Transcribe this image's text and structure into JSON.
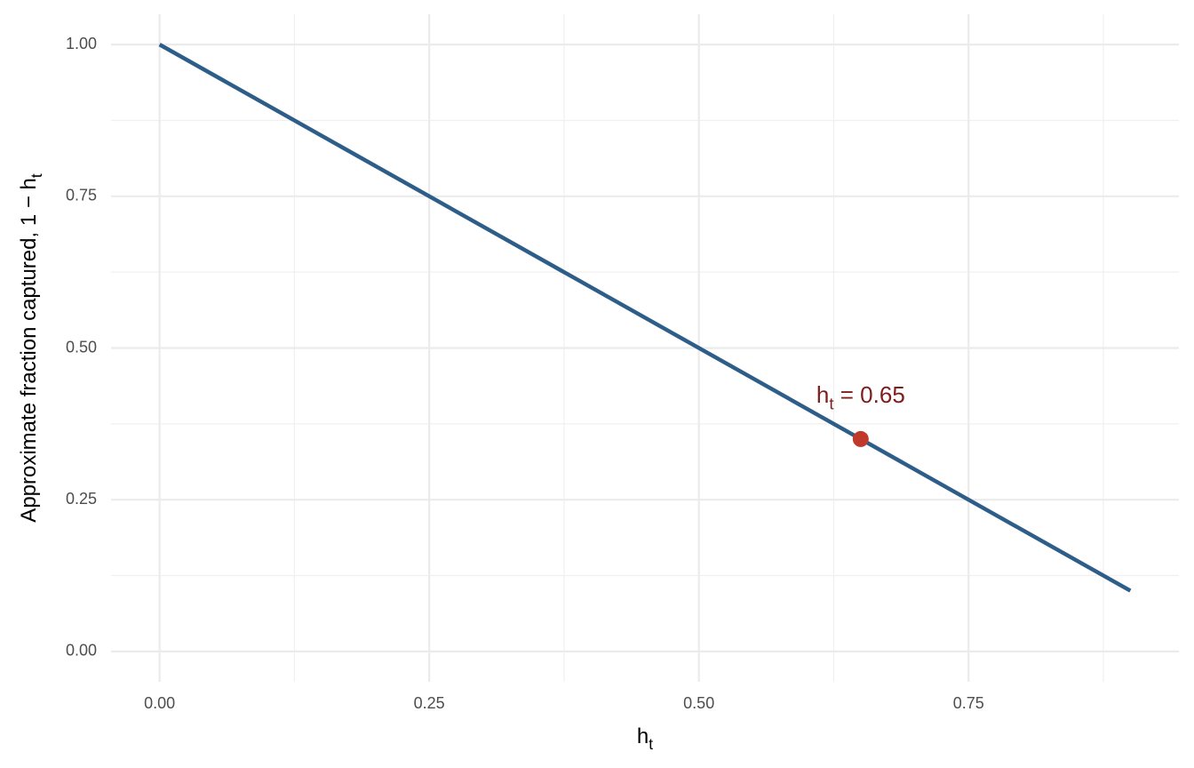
{
  "chart_data": {
    "type": "line",
    "xlabel": {
      "base": "h",
      "sub": "t"
    },
    "ylabel": {
      "base": "Approximate fraction captured, 1 − h",
      "sub": "t"
    },
    "series": [
      {
        "x": [
          0,
          0.9
        ],
        "values": [
          1,
          0.1
        ],
        "color": "#2d5d89"
      }
    ],
    "highlight": {
      "x": 0.65,
      "y": 0.35,
      "color": "#c0392b",
      "label": {
        "base": "h",
        "sub": "t",
        "tail": " = 0.65"
      },
      "label_color": "#7f1d1d"
    },
    "xlim": [
      -0.045,
      0.945
    ],
    "ylim": [
      -0.05,
      1.05
    ],
    "xticks": [
      {
        "value": 0,
        "label": "0.00"
      },
      {
        "value": 0.25,
        "label": "0.25"
      },
      {
        "value": 0.5,
        "label": "0.50"
      },
      {
        "value": 0.75,
        "label": "0.75"
      }
    ],
    "yticks": [
      {
        "value": 0,
        "label": "0.00"
      },
      {
        "value": 0.25,
        "label": "0.25"
      },
      {
        "value": 0.5,
        "label": "0.50"
      },
      {
        "value": 0.75,
        "label": "0.75"
      },
      {
        "value": 1,
        "label": "1.00"
      }
    ],
    "xminor": [
      0.125,
      0.375,
      0.625,
      0.875
    ],
    "yminor": [
      0.125,
      0.375,
      0.625,
      0.875
    ],
    "grid": true
  }
}
